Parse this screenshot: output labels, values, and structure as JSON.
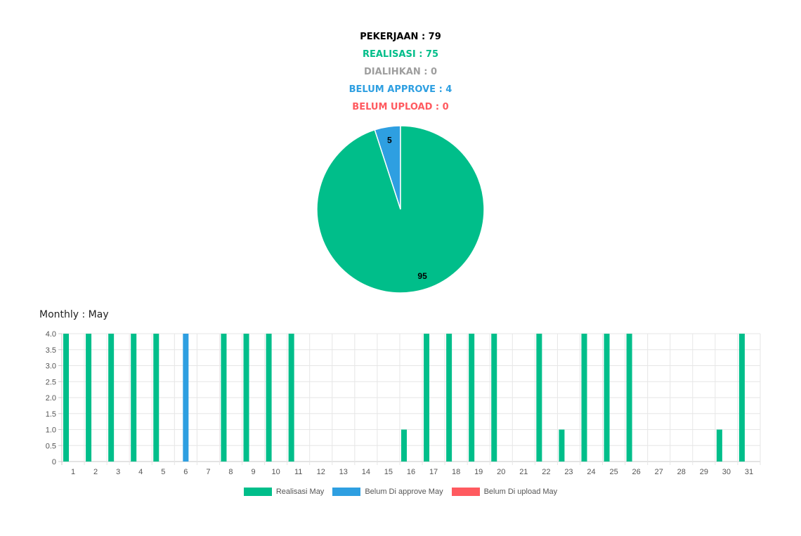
{
  "stats": {
    "pekerjaan": "PEKERJAAN : 79",
    "realisasi": "REALISASI : 75",
    "dialihkan": "DIALIHKAN : 0",
    "belum_approve": "BELUM APPROVE : 4",
    "belum_upload": "BELUM UPLOAD : 0"
  },
  "colors": {
    "green": "#00be8a",
    "blue": "#2e9fe1",
    "red": "#ff5a5f",
    "gray": "#9e9e9e",
    "black": "#000000"
  },
  "monthly_title": "Monthly : May",
  "chart_data": [
    {
      "type": "pie",
      "labels": [
        "Realisasi",
        "Belum Approve"
      ],
      "values": [
        95,
        5
      ],
      "data_labels": [
        "95",
        "5"
      ]
    },
    {
      "type": "bar",
      "categories": [
        "1",
        "2",
        "3",
        "4",
        "5",
        "6",
        "7",
        "8",
        "9",
        "10",
        "11",
        "12",
        "13",
        "14",
        "15",
        "16",
        "17",
        "18",
        "19",
        "20",
        "21",
        "22",
        "23",
        "24",
        "25",
        "26",
        "27",
        "28",
        "29",
        "30",
        "31"
      ],
      "series": [
        {
          "name": "Realisasi May",
          "values": [
            4,
            4,
            4,
            4,
            4,
            0,
            0,
            4,
            4,
            4,
            4,
            0,
            0,
            0,
            0,
            1,
            4,
            4,
            4,
            4,
            0,
            4,
            1,
            4,
            4,
            4,
            0,
            0,
            0,
            1,
            4
          ]
        },
        {
          "name": "Belum Di approve May",
          "values": [
            0,
            0,
            0,
            0,
            0,
            4,
            0,
            0,
            0,
            0,
            0,
            0,
            0,
            0,
            0,
            0,
            0,
            0,
            0,
            0,
            0,
            0,
            0,
            0,
            0,
            0,
            0,
            0,
            0,
            0,
            0
          ]
        },
        {
          "name": "Belum Di upload May",
          "values": [
            0,
            0,
            0,
            0,
            0,
            0,
            0,
            0,
            0,
            0,
            0,
            0,
            0,
            0,
            0,
            0,
            0,
            0,
            0,
            0,
            0,
            0,
            0,
            0,
            0,
            0,
            0,
            0,
            0,
            0,
            0
          ]
        }
      ],
      "ylim": [
        0,
        4
      ],
      "yticks": [
        "0",
        "0.5",
        "1.0",
        "1.5",
        "2.0",
        "2.5",
        "3.0",
        "3.5",
        "4.0"
      ],
      "grid": true,
      "legend": "bottom"
    }
  ]
}
